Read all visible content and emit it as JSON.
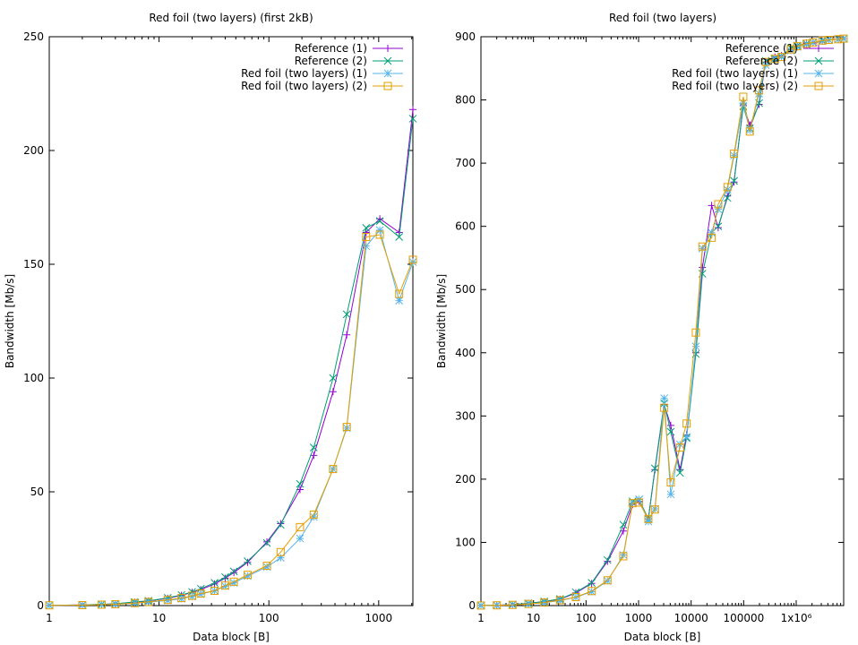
{
  "colors": {
    "reference_1": "#9400d3",
    "reference_2": "#009e73",
    "red_foil_1": "#56b4e9",
    "red_foil_2": "#e69f00"
  },
  "chart_data": [
    {
      "type": "line",
      "title": "Red foil (two layers) (first 2kB)",
      "xlabel": "Data block [B]",
      "ylabel": "Bandwidth [Mb/s]",
      "xscale": "log",
      "xlim": [
        1,
        2048
      ],
      "ylim": [
        0,
        250
      ],
      "xticks": [
        1,
        10,
        100,
        1000
      ],
      "xtick_labels": [
        "1",
        "10",
        "100",
        "1000"
      ],
      "yticks": [
        0,
        50,
        100,
        150,
        200,
        250
      ],
      "ytick_labels": [
        "0",
        "50",
        "100",
        "150",
        "200",
        "250"
      ],
      "legend_position": "top-right",
      "series": [
        {
          "name": "Reference (1)",
          "marker": "plus",
          "x": [
            1,
            2,
            3,
            4,
            6,
            8,
            12,
            16,
            20,
            24,
            32,
            40,
            48,
            64,
            96,
            128,
            192,
            256,
            384,
            512,
            768,
            1024,
            1536,
            2048
          ],
          "y": [
            0.1,
            0.3,
            0.5,
            0.8,
            1.5,
            2.0,
            3.2,
            4.5,
            5.8,
            7.0,
            9.5,
            12.0,
            14.5,
            19.0,
            28.0,
            36.0,
            51.0,
            66.0,
            94.0,
            119.0,
            164.0,
            170.0,
            164.0,
            218.0
          ]
        },
        {
          "name": "Reference (2)",
          "marker": "x",
          "x": [
            1,
            2,
            3,
            4,
            6,
            8,
            12,
            16,
            20,
            24,
            32,
            40,
            48,
            64,
            96,
            128,
            192,
            256,
            384,
            512,
            768,
            1024,
            1536,
            2048
          ],
          "y": [
            0.1,
            0.3,
            0.6,
            0.8,
            1.6,
            2.1,
            3.4,
            4.7,
            6.0,
            7.4,
            10.0,
            12.5,
            15.0,
            19.5,
            27.5,
            35.5,
            53.5,
            69.5,
            100.0,
            128.0,
            166.0,
            169.0,
            162.0,
            214.0
          ]
        },
        {
          "name": "Red foil (two layers) (1)",
          "marker": "star",
          "x": [
            1,
            2,
            3,
            4,
            6,
            8,
            12,
            16,
            20,
            24,
            32,
            40,
            48,
            64,
            96,
            128,
            192,
            256,
            384,
            512,
            768,
            1024,
            1536,
            2048
          ],
          "y": [
            0.1,
            0.2,
            0.4,
            0.6,
            1.0,
            1.5,
            2.3,
            3.0,
            4.0,
            5.0,
            6.5,
            8.5,
            10.0,
            13.0,
            17.0,
            21.0,
            29.5,
            39.0,
            60.0,
            78.0,
            158.0,
            165.0,
            134.0,
            151.0
          ]
        },
        {
          "name": "Red foil (two layers) (2)",
          "marker": "square",
          "x": [
            1,
            2,
            3,
            4,
            6,
            8,
            12,
            16,
            20,
            24,
            32,
            40,
            48,
            64,
            96,
            128,
            192,
            256,
            384,
            512,
            768,
            1024,
            1536,
            2048
          ],
          "y": [
            0.1,
            0.2,
            0.4,
            0.6,
            1.1,
            1.6,
            2.5,
            3.3,
            4.3,
            5.3,
            6.5,
            8.8,
            10.5,
            13.5,
            17.5,
            23.5,
            34.5,
            40.0,
            60.0,
            78.5,
            162.0,
            163.0,
            137.0,
            152.0
          ]
        }
      ]
    },
    {
      "type": "line",
      "title": "Red foil (two layers)",
      "xlabel": "Data block [B]",
      "ylabel": "Bandwidth [Mb/s]",
      "xscale": "log",
      "xlim": [
        1,
        8000000
      ],
      "ylim": [
        0,
        900
      ],
      "xticks": [
        1,
        10,
        100,
        1000,
        10000,
        100000,
        1000000
      ],
      "xtick_labels": [
        "1",
        "10",
        "100",
        "1000",
        "10000",
        "100000",
        "1x10⁶"
      ],
      "yticks": [
        0,
        100,
        200,
        300,
        400,
        500,
        600,
        700,
        800,
        900
      ],
      "ytick_labels": [
        "0",
        "100",
        "200",
        "300",
        "400",
        "500",
        "600",
        "700",
        "800",
        "900"
      ],
      "legend_position": "top-right",
      "series": [
        {
          "name": "Reference (1)",
          "marker": "plus",
          "x": [
            1,
            2,
            4,
            8,
            16,
            32,
            64,
            128,
            256,
            512,
            768,
            1024,
            1536,
            2048,
            3072,
            4096,
            6144,
            8192,
            12288,
            16384,
            24576,
            32768,
            49152,
            65536,
            98304,
            131072,
            196608,
            262144,
            393216,
            524288,
            786432,
            1048576,
            1572864,
            2097152,
            3145728,
            4194304,
            6291456,
            8000000
          ],
          "y": [
            0.2,
            0.5,
            1.5,
            3.5,
            6.0,
            10.0,
            20.0,
            35.0,
            70.0,
            118.0,
            160.0,
            165.0,
            137.0,
            215.0,
            318.0,
            285.0,
            215.0,
            270.0,
            400.0,
            535.0,
            633.0,
            598.0,
            648.0,
            670.0,
            792.0,
            760.0,
            793.0,
            860.0,
            868.0,
            870.0,
            880.0,
            885.0,
            890.0,
            890.0,
            893.0,
            895.0,
            896.0,
            897.0
          ]
        },
        {
          "name": "Reference (2)",
          "marker": "x",
          "x": [
            1,
            2,
            4,
            8,
            16,
            32,
            64,
            128,
            256,
            512,
            768,
            1024,
            1536,
            2048,
            3072,
            4096,
            6144,
            8192,
            12288,
            16384,
            24576,
            32768,
            49152,
            65536,
            98304,
            131072,
            196608,
            262144,
            393216,
            524288,
            786432,
            1048576,
            1572864,
            2097152,
            3145728,
            4194304,
            6291456,
            8000000
          ],
          "y": [
            0.2,
            0.6,
            1.6,
            3.6,
            6.5,
            10.5,
            21.0,
            36.0,
            72.0,
            128.0,
            165.0,
            168.0,
            137.0,
            217.0,
            320.0,
            275.0,
            210.0,
            265.0,
            398.0,
            525.0,
            590.0,
            600.0,
            645.0,
            672.0,
            790.0,
            755.0,
            795.0,
            862.0,
            866.0,
            869.0,
            882.0,
            886.0,
            889.0,
            891.0,
            894.0,
            895.0,
            896.0,
            897.0
          ]
        },
        {
          "name": "Red foil (two layers) (1)",
          "marker": "star",
          "x": [
            1,
            2,
            4,
            8,
            16,
            32,
            64,
            128,
            256,
            512,
            768,
            1024,
            1536,
            2048,
            3072,
            4096,
            6144,
            8192,
            12288,
            16384,
            24576,
            32768,
            49152,
            65536,
            98304,
            131072,
            196608,
            262144,
            393216,
            524288,
            786432,
            1048576,
            1572864,
            2097152,
            3145728,
            4194304,
            6291456,
            8000000
          ],
          "y": [
            0.1,
            0.4,
            1.0,
            2.5,
            4.5,
            8.0,
            13.0,
            22.0,
            39.0,
            80.0,
            162.0,
            168.0,
            133.0,
            153.0,
            328.0,
            176.0,
            255.0,
            267.0,
            410.0,
            565.0,
            590.0,
            627.0,
            658.0,
            712.0,
            795.0,
            752.0,
            810.0,
            855.0,
            864.0,
            868.0,
            878.0,
            884.0,
            888.0,
            891.0,
            893.0,
            895.0,
            896.0,
            897.0
          ]
        },
        {
          "name": "Red foil (two layers) (2)",
          "marker": "square",
          "x": [
            1,
            2,
            4,
            8,
            16,
            32,
            64,
            128,
            256,
            512,
            768,
            1024,
            1536,
            2048,
            3072,
            4096,
            6144,
            8192,
            12288,
            16384,
            24576,
            32768,
            49152,
            65536,
            98304,
            131072,
            196608,
            262144,
            393216,
            524288,
            786432,
            1048576,
            1572864,
            2097152,
            3145728,
            4194304,
            6291456,
            8000000
          ],
          "y": [
            0.1,
            0.4,
            1.1,
            2.6,
            4.8,
            8.5,
            13.5,
            23.0,
            40.0,
            78.0,
            162.0,
            163.0,
            137.0,
            152.0,
            313.0,
            195.0,
            250.0,
            288.0,
            432.0,
            568.0,
            582.0,
            635.0,
            662.0,
            715.0,
            805.0,
            750.0,
            815.0,
            860.0,
            865.0,
            868.0,
            880.0,
            885.0,
            889.0,
            891.0,
            894.0,
            895.0,
            896.0,
            897.0
          ]
        }
      ]
    }
  ]
}
